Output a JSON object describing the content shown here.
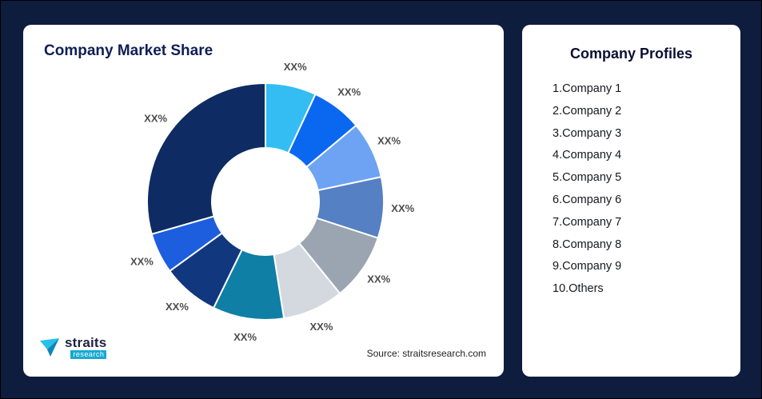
{
  "colors": {
    "background": "#0e1c3e",
    "card": "#ffffff",
    "title": "#0f1f55",
    "label": "#4d4d4d",
    "logo_accent": "#18a9cf"
  },
  "left_card": {
    "title": "Company Market Share",
    "source": "Source: straitsresearch.com"
  },
  "logo": {
    "name": "straits",
    "sub": "research"
  },
  "chart_data": {
    "type": "pie",
    "donut": true,
    "title": "Company Market Share",
    "legend_position": "none",
    "note": "all slice values masked as XX% in source image; values are estimated arc degrees",
    "segments": [
      {
        "label": "XX%",
        "value": 25,
        "color": "#33bdf3"
      },
      {
        "label": "XX%",
        "value": 25,
        "color": "#0a68f0"
      },
      {
        "label": "XX%",
        "value": 28,
        "color": "#6da3f2"
      },
      {
        "label": "XX%",
        "value": 30,
        "color": "#5580c4"
      },
      {
        "label": "XX%",
        "value": 33,
        "color": "#9aa5b1"
      },
      {
        "label": "XX%",
        "value": 30,
        "color": "#d3d9de"
      },
      {
        "label": "XX%",
        "value": 35,
        "color": "#0f7fa5"
      },
      {
        "label": "XX%",
        "value": 28,
        "color": "#11377f"
      },
      {
        "label": "XX%",
        "value": 20,
        "color": "#1d5ede"
      },
      {
        "label": "XX%",
        "value": 106,
        "color": "#0e2b63"
      }
    ],
    "source": "Source: straitsresearch.com"
  },
  "profiles": {
    "title": "Company Profiles",
    "items": [
      "1.Company 1",
      "2.Company 2",
      "3.Company 3",
      "4.Company 4",
      "5.Company 5",
      "6.Company 6",
      "7.Company 7",
      "8.Company 8",
      "9.Company 9",
      "10.Others"
    ]
  }
}
